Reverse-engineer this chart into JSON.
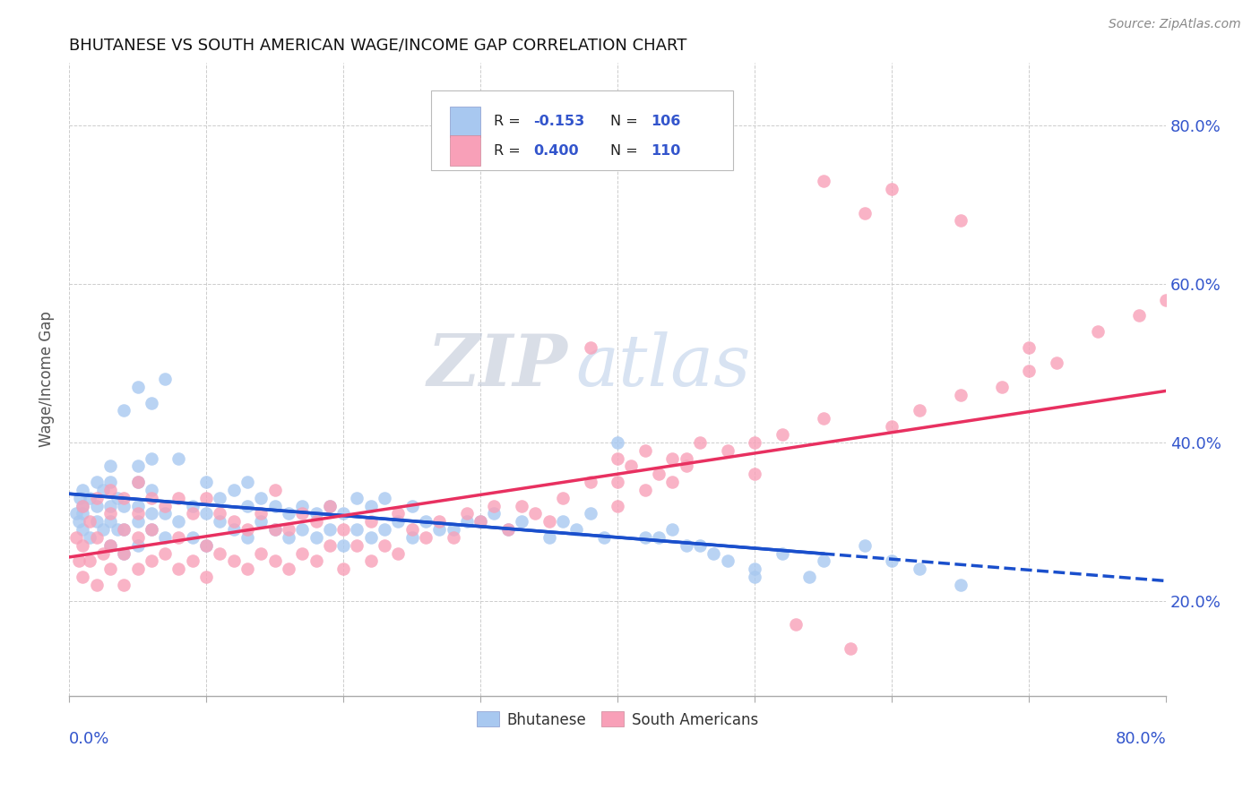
{
  "title": "BHUTANESE VS SOUTH AMERICAN WAGE/INCOME GAP CORRELATION CHART",
  "source": "Source: ZipAtlas.com",
  "ylabel": "Wage/Income Gap",
  "ytick_vals": [
    0.2,
    0.4,
    0.6,
    0.8
  ],
  "ytick_labels": [
    "20.0%",
    "40.0%",
    "60.0%",
    "80.0%"
  ],
  "xrange": [
    0.0,
    0.8
  ],
  "yrange": [
    0.08,
    0.88
  ],
  "blue_color": "#a8c8f0",
  "pink_color": "#f8a0b8",
  "blue_line_color": "#1a4fcc",
  "pink_line_color": "#e83060",
  "blue_line_solid_end": 0.55,
  "blue_line_x0": 0.0,
  "blue_line_y0": 0.335,
  "blue_line_x1": 0.8,
  "blue_line_y1": 0.225,
  "pink_line_x0": 0.0,
  "pink_line_y0": 0.255,
  "pink_line_x1": 0.8,
  "pink_line_y1": 0.465,
  "legend_r_blue": "-0.153",
  "legend_n_blue": "106",
  "legend_r_pink": "0.400",
  "legend_n_pink": "110",
  "legend_blue_color": "#a8c8f0",
  "legend_pink_color": "#f8a0b8",
  "text_color": "#3355cc",
  "label_color": "#333333",
  "watermark_zip": "ZIP",
  "watermark_atlas": "atlas",
  "bottom_legend_blue": "Bhutanese",
  "bottom_legend_pink": "South Americans",
  "blue_scatter_x": [
    0.005,
    0.007,
    0.008,
    0.01,
    0.01,
    0.01,
    0.01,
    0.015,
    0.015,
    0.02,
    0.02,
    0.02,
    0.025,
    0.025,
    0.03,
    0.03,
    0.03,
    0.03,
    0.03,
    0.035,
    0.035,
    0.04,
    0.04,
    0.04,
    0.04,
    0.05,
    0.05,
    0.05,
    0.05,
    0.05,
    0.05,
    0.06,
    0.06,
    0.06,
    0.06,
    0.06,
    0.07,
    0.07,
    0.07,
    0.08,
    0.08,
    0.09,
    0.09,
    0.1,
    0.1,
    0.1,
    0.11,
    0.11,
    0.12,
    0.12,
    0.13,
    0.13,
    0.13,
    0.14,
    0.14,
    0.15,
    0.15,
    0.16,
    0.16,
    0.17,
    0.17,
    0.18,
    0.18,
    0.19,
    0.19,
    0.2,
    0.2,
    0.21,
    0.21,
    0.22,
    0.22,
    0.23,
    0.23,
    0.24,
    0.25,
    0.25,
    0.26,
    0.27,
    0.28,
    0.29,
    0.3,
    0.31,
    0.32,
    0.33,
    0.35,
    0.36,
    0.37,
    0.39,
    0.4,
    0.42,
    0.44,
    0.45,
    0.46,
    0.48,
    0.5,
    0.52,
    0.54,
    0.55,
    0.58,
    0.6,
    0.62,
    0.65,
    0.38,
    0.43,
    0.47,
    0.5
  ],
  "blue_scatter_y": [
    0.31,
    0.3,
    0.33,
    0.29,
    0.31,
    0.34,
    0.32,
    0.28,
    0.33,
    0.3,
    0.35,
    0.32,
    0.29,
    0.34,
    0.27,
    0.3,
    0.32,
    0.35,
    0.37,
    0.29,
    0.33,
    0.26,
    0.29,
    0.32,
    0.44,
    0.27,
    0.3,
    0.32,
    0.35,
    0.37,
    0.47,
    0.29,
    0.31,
    0.34,
    0.38,
    0.45,
    0.28,
    0.31,
    0.48,
    0.3,
    0.38,
    0.28,
    0.32,
    0.27,
    0.31,
    0.35,
    0.3,
    0.33,
    0.29,
    0.34,
    0.28,
    0.32,
    0.35,
    0.3,
    0.33,
    0.29,
    0.32,
    0.28,
    0.31,
    0.29,
    0.32,
    0.28,
    0.31,
    0.29,
    0.32,
    0.27,
    0.31,
    0.29,
    0.33,
    0.28,
    0.32,
    0.29,
    0.33,
    0.3,
    0.28,
    0.32,
    0.3,
    0.29,
    0.29,
    0.3,
    0.3,
    0.31,
    0.29,
    0.3,
    0.28,
    0.3,
    0.29,
    0.28,
    0.4,
    0.28,
    0.29,
    0.27,
    0.27,
    0.25,
    0.24,
    0.26,
    0.23,
    0.25,
    0.27,
    0.25,
    0.24,
    0.22,
    0.31,
    0.28,
    0.26,
    0.23
  ],
  "pink_scatter_x": [
    0.005,
    0.007,
    0.01,
    0.01,
    0.01,
    0.015,
    0.015,
    0.02,
    0.02,
    0.02,
    0.025,
    0.03,
    0.03,
    0.03,
    0.03,
    0.04,
    0.04,
    0.04,
    0.04,
    0.05,
    0.05,
    0.05,
    0.05,
    0.06,
    0.06,
    0.06,
    0.07,
    0.07,
    0.08,
    0.08,
    0.08,
    0.09,
    0.09,
    0.1,
    0.1,
    0.1,
    0.11,
    0.11,
    0.12,
    0.12,
    0.13,
    0.13,
    0.14,
    0.14,
    0.15,
    0.15,
    0.15,
    0.16,
    0.16,
    0.17,
    0.17,
    0.18,
    0.18,
    0.19,
    0.19,
    0.2,
    0.2,
    0.21,
    0.22,
    0.22,
    0.23,
    0.24,
    0.24,
    0.25,
    0.26,
    0.27,
    0.28,
    0.29,
    0.3,
    0.31,
    0.32,
    0.33,
    0.34,
    0.35,
    0.36,
    0.38,
    0.4,
    0.4,
    0.42,
    0.43,
    0.44,
    0.45,
    0.4,
    0.42,
    0.45,
    0.5,
    0.5,
    0.52,
    0.55,
    0.57,
    0.6,
    0.62,
    0.65,
    0.68,
    0.7,
    0.55,
    0.58,
    0.6,
    0.65,
    0.7,
    0.72,
    0.75,
    0.78,
    0.8,
    0.38,
    0.41,
    0.44,
    0.46,
    0.48,
    0.53
  ],
  "pink_scatter_y": [
    0.28,
    0.25,
    0.23,
    0.27,
    0.32,
    0.25,
    0.3,
    0.22,
    0.28,
    0.33,
    0.26,
    0.24,
    0.27,
    0.31,
    0.34,
    0.22,
    0.26,
    0.29,
    0.33,
    0.24,
    0.28,
    0.31,
    0.35,
    0.25,
    0.29,
    0.33,
    0.26,
    0.32,
    0.24,
    0.28,
    0.33,
    0.25,
    0.31,
    0.23,
    0.27,
    0.33,
    0.26,
    0.31,
    0.25,
    0.3,
    0.24,
    0.29,
    0.26,
    0.31,
    0.25,
    0.29,
    0.34,
    0.24,
    0.29,
    0.26,
    0.31,
    0.25,
    0.3,
    0.27,
    0.32,
    0.24,
    0.29,
    0.27,
    0.25,
    0.3,
    0.27,
    0.26,
    0.31,
    0.29,
    0.28,
    0.3,
    0.28,
    0.31,
    0.3,
    0.32,
    0.29,
    0.32,
    0.31,
    0.3,
    0.33,
    0.52,
    0.32,
    0.35,
    0.34,
    0.36,
    0.35,
    0.37,
    0.38,
    0.39,
    0.38,
    0.36,
    0.4,
    0.41,
    0.43,
    0.14,
    0.42,
    0.44,
    0.46,
    0.47,
    0.49,
    0.73,
    0.69,
    0.72,
    0.68,
    0.52,
    0.5,
    0.54,
    0.56,
    0.58,
    0.35,
    0.37,
    0.38,
    0.4,
    0.39,
    0.17
  ]
}
